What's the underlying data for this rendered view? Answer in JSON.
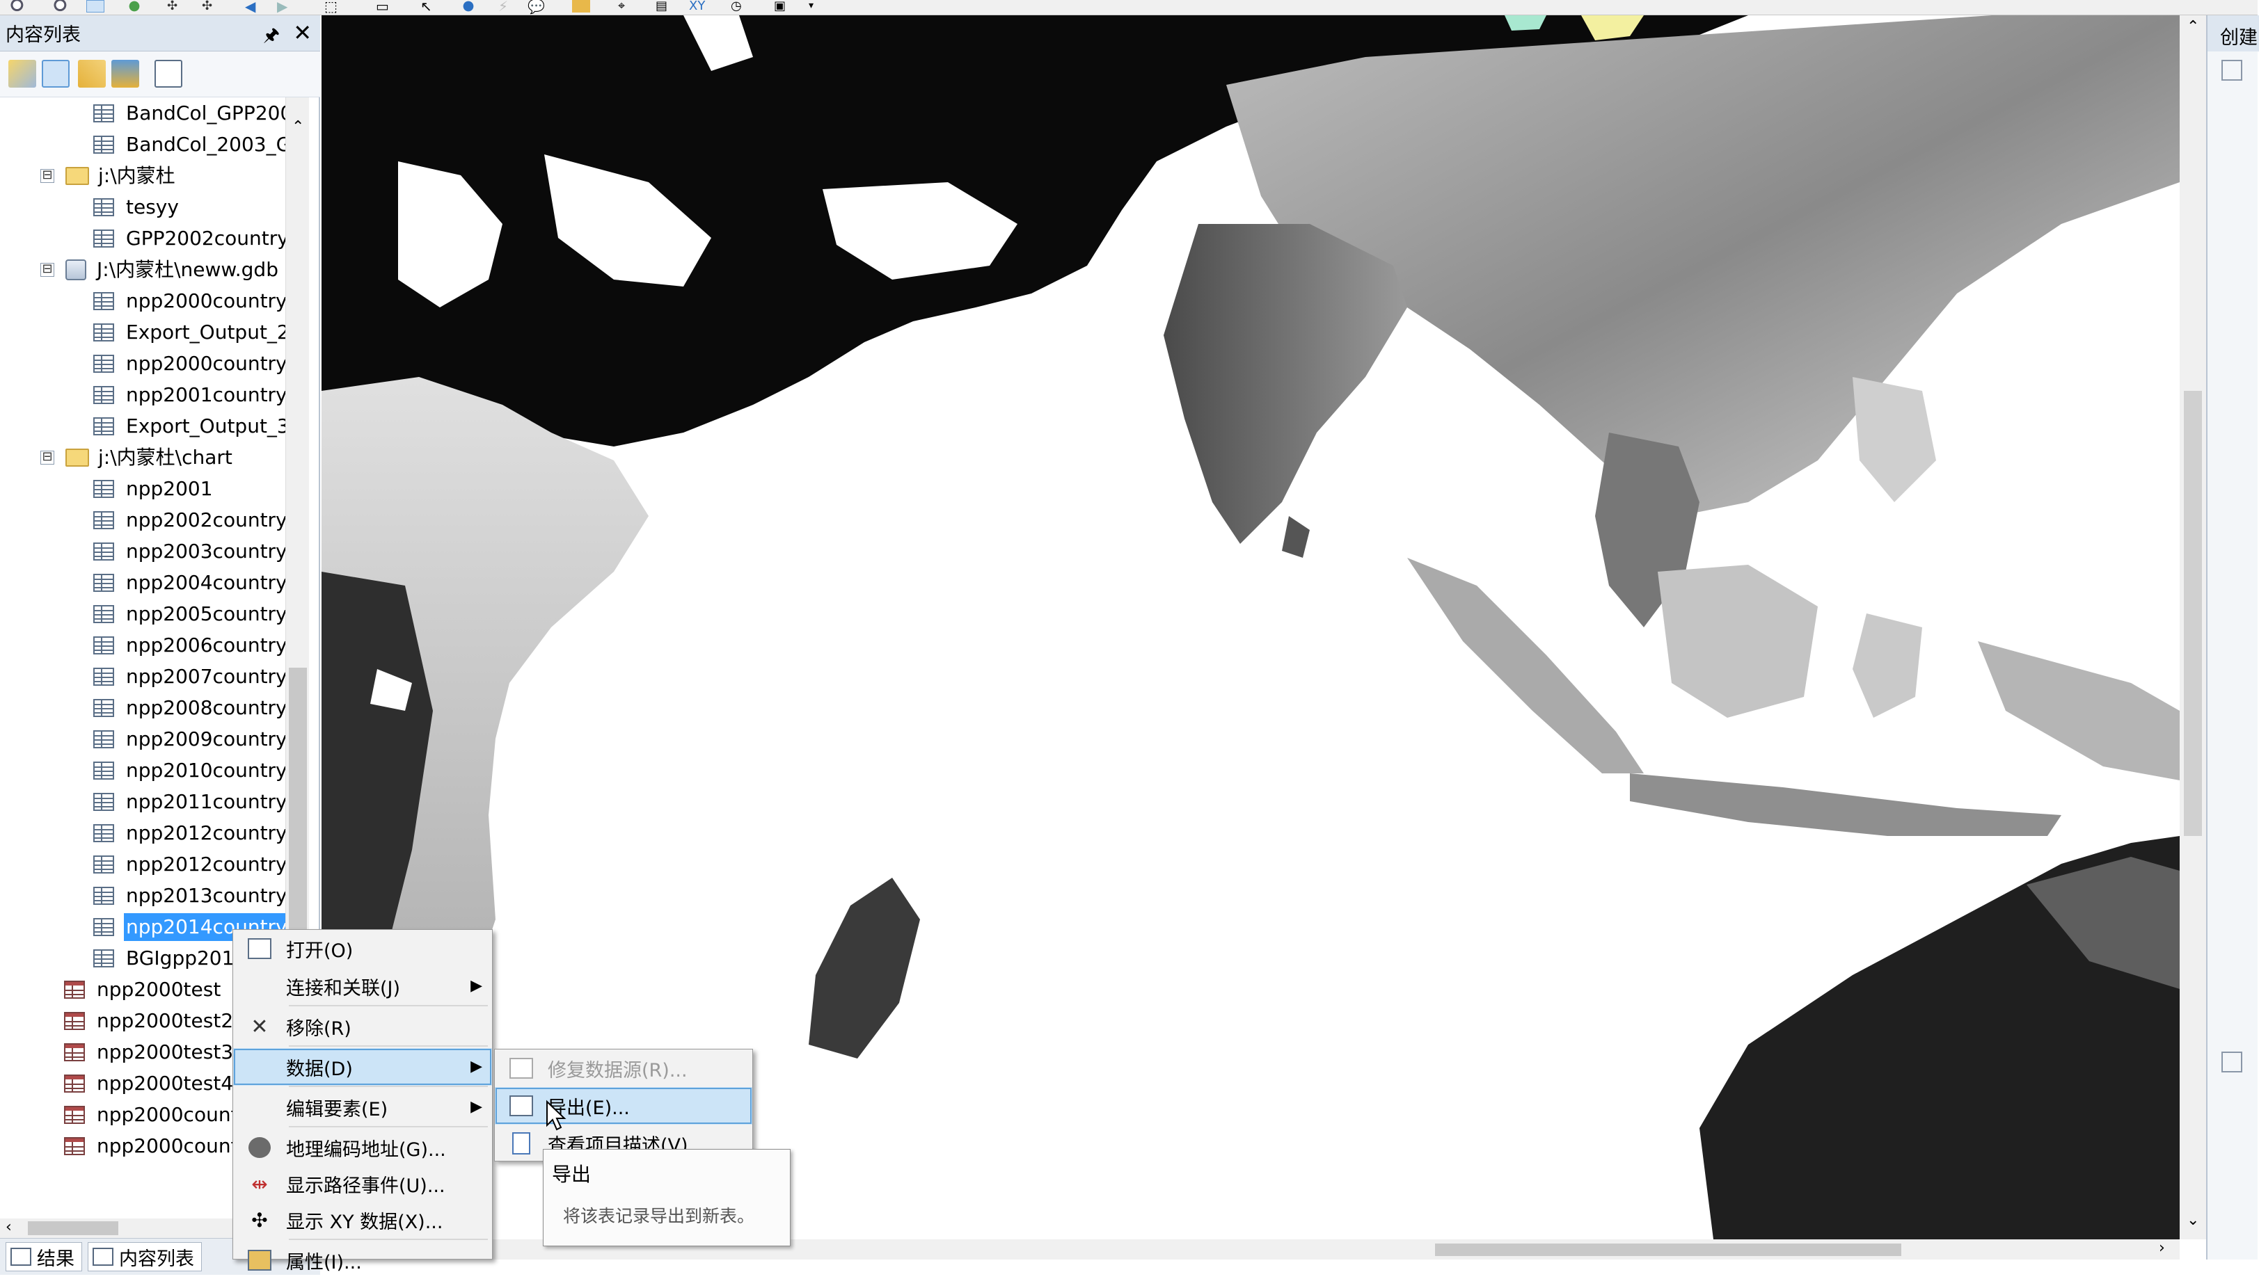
{
  "toc": {
    "title": "内容列表",
    "pin_glyph": "🖈",
    "close_glyph": "✕",
    "tool_icons": [
      "list-by-drawing-order-icon",
      "list-by-source-icon",
      "list-by-visibility-icon",
      "list-by-selection-icon",
      "options-icon"
    ],
    "items": [
      {
        "label": "BandCol_GPP200",
        "kind": "table",
        "indent": 1
      },
      {
        "label": "BandCol_2003_G",
        "kind": "table",
        "indent": 1
      },
      {
        "label": "j:\\内蒙杜",
        "kind": "folder",
        "indent": 0,
        "expander": "⊟"
      },
      {
        "label": "tesyy",
        "kind": "table",
        "indent": 1
      },
      {
        "label": "GPP2002country",
        "kind": "table",
        "indent": 1
      },
      {
        "label": "J:\\内蒙杜\\neww.gdb",
        "kind": "gdb",
        "indent": 0,
        "expander": "⊟"
      },
      {
        "label": "npp2000country",
        "kind": "table",
        "indent": 1
      },
      {
        "label": "Export_Output_2",
        "kind": "table",
        "indent": 1
      },
      {
        "label": "npp2000country",
        "kind": "table",
        "indent": 1
      },
      {
        "label": "npp2001country",
        "kind": "table",
        "indent": 1
      },
      {
        "label": "Export_Output_3",
        "kind": "table",
        "indent": 1
      },
      {
        "label": "j:\\内蒙杜\\chart",
        "kind": "folder",
        "indent": 0,
        "expander": "⊟"
      },
      {
        "label": "npp2001",
        "kind": "table",
        "indent": 1
      },
      {
        "label": "npp2002country",
        "kind": "table",
        "indent": 1
      },
      {
        "label": "npp2003country",
        "kind": "table",
        "indent": 1
      },
      {
        "label": "npp2004country",
        "kind": "table",
        "indent": 1
      },
      {
        "label": "npp2005country",
        "kind": "table",
        "indent": 1
      },
      {
        "label": "npp2006country",
        "kind": "table",
        "indent": 1
      },
      {
        "label": "npp2007country",
        "kind": "table",
        "indent": 1
      },
      {
        "label": "npp2008country",
        "kind": "table",
        "indent": 1
      },
      {
        "label": "npp2009country",
        "kind": "table",
        "indent": 1
      },
      {
        "label": "npp2010country",
        "kind": "table",
        "indent": 1
      },
      {
        "label": "npp2011country",
        "kind": "table",
        "indent": 1
      },
      {
        "label": "npp2012country",
        "kind": "table",
        "indent": 1
      },
      {
        "label": "npp2012country",
        "kind": "table",
        "indent": 1
      },
      {
        "label": "npp2013country",
        "kind": "table",
        "indent": 1
      },
      {
        "label": "npp2014country",
        "kind": "table",
        "indent": 1,
        "selected": true
      },
      {
        "label": "BGIgpp201",
        "kind": "table",
        "indent": 1
      },
      {
        "label": "npp2000test",
        "kind": "table2",
        "indent": -1
      },
      {
        "label": "npp2000test2",
        "kind": "table2",
        "indent": -1
      },
      {
        "label": "npp2000test3",
        "kind": "table2",
        "indent": -1
      },
      {
        "label": "npp2000test4",
        "kind": "table2",
        "indent": -1
      },
      {
        "label": "npp2000count",
        "kind": "table2",
        "indent": -1
      },
      {
        "label": "npp2000count",
        "kind": "table2",
        "indent": -1
      }
    ],
    "tabs": [
      "结果",
      "内容列表"
    ]
  },
  "context_menu": {
    "items": [
      {
        "label": "打开(O)",
        "icon": "table-open-icon"
      },
      {
        "label": "连接和关联(J)",
        "submenu": true
      },
      {
        "label": "移除(R)",
        "icon": "remove-x-icon"
      },
      {
        "label": "数据(D)",
        "submenu": true,
        "highlighted": true
      },
      {
        "label": "编辑要素(E)",
        "submenu": true
      },
      {
        "label": "地理编码地址(G)...",
        "icon": "geocode-icon"
      },
      {
        "label": "显示路径事件(U)...",
        "icon": "route-events-icon"
      },
      {
        "label": "显示 XY 数据(X)...",
        "icon": "xy-data-icon"
      },
      {
        "label": "属性(I)...",
        "icon": "properties-icon"
      }
    ],
    "submenu_items": [
      {
        "label": "修复数据源(R)...",
        "disabled": true
      },
      {
        "label": "导出(E)...",
        "highlighted": true
      },
      {
        "label": "查看项目描述(V)..."
      }
    ]
  },
  "tooltip": {
    "title": "导出",
    "text": "将该表记录导出到新表。"
  },
  "right_panel": {
    "title": "创建"
  },
  "colors": {
    "selection": "#3399ff",
    "menu_highlight": "#cce4f7",
    "panel_header": "#dde6f0"
  }
}
